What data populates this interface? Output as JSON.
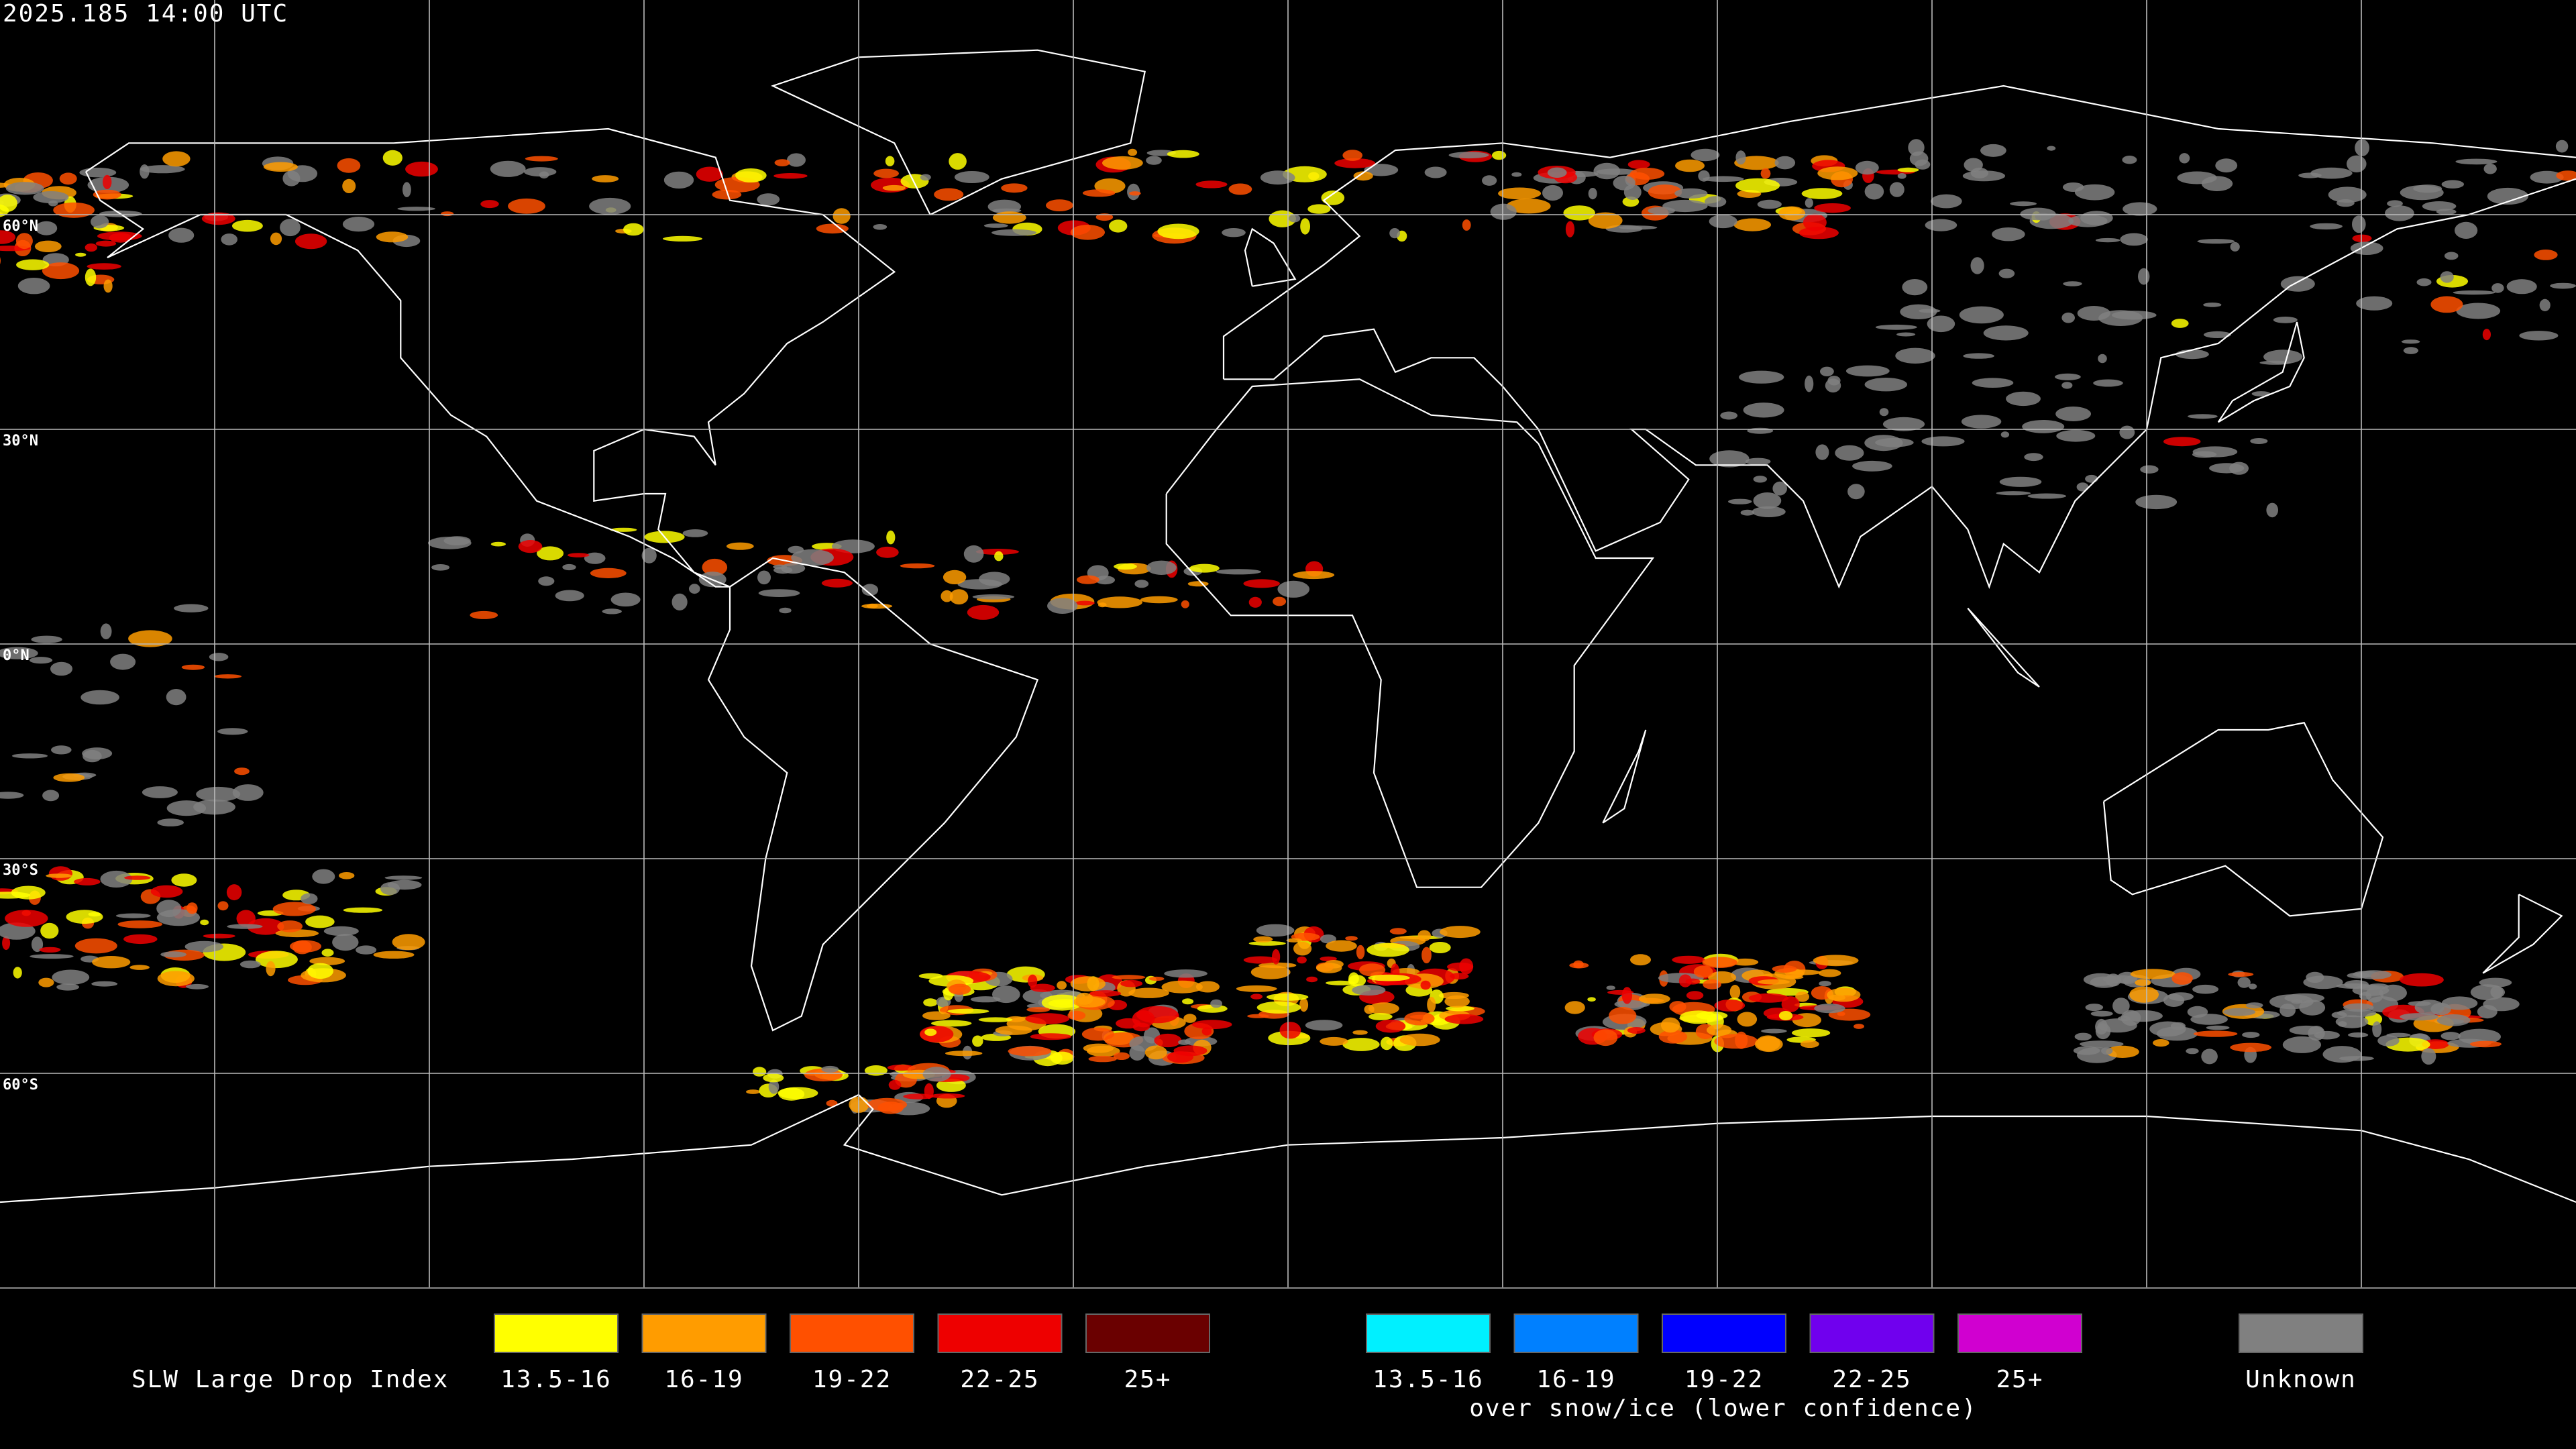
{
  "timestamp": "2025.185 14:00 UTC",
  "grid_labels": [
    "60°N",
    "30°N",
    "0°N",
    "30°S",
    "60°S"
  ],
  "legend": {
    "title": "SLW Large Drop Index",
    "groups": [
      {
        "items": [
          {
            "label": "13.5-16",
            "color": "#ffff00"
          },
          {
            "label": "16-19",
            "color": "#ff9c00"
          },
          {
            "label": "19-22",
            "color": "#ff5000"
          },
          {
            "label": "22-25",
            "color": "#ee0000"
          },
          {
            "label": "25+",
            "color": "#6a0000"
          }
        ]
      },
      {
        "items": [
          {
            "label": "13.5-16",
            "color": "#00f0ff"
          },
          {
            "label": "16-19",
            "color": "#0080ff"
          },
          {
            "label": "19-22",
            "color": "#0000ff"
          },
          {
            "label": "22-25",
            "color": "#7000ee"
          },
          {
            "label": "25+",
            "color": "#d000d0"
          }
        ],
        "note": "over snow/ice (lower confidence)"
      }
    ],
    "unknown": {
      "label": "Unknown",
      "color": "#808080"
    }
  }
}
